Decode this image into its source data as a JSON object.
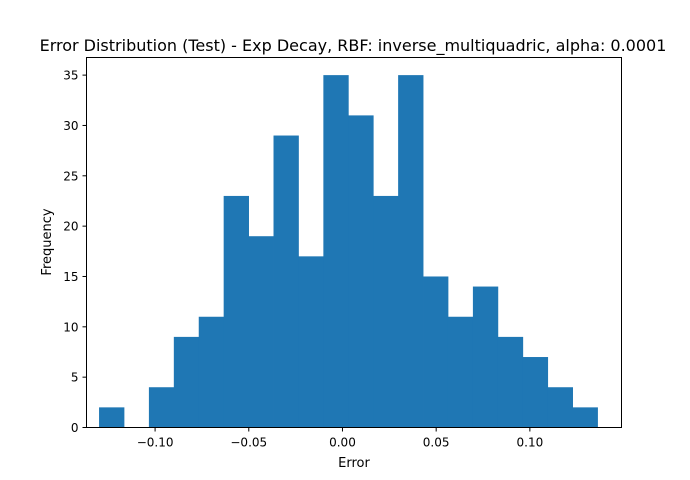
{
  "chart_data": {
    "type": "bar",
    "title": "Error Distribution (Test) - Exp Decay, RBF: inverse_multiquadric, alpha: 0.0001",
    "xlabel": "Error",
    "ylabel": "Frequency",
    "bar_color": "#1f77b4",
    "xlim": [
      -0.1366,
      0.1489
    ],
    "ylim": [
      0,
      36.75
    ],
    "xticks": [
      -0.1,
      -0.05,
      0.0,
      0.05,
      0.1
    ],
    "xtick_labels": [
      "−0.10",
      "−0.05",
      "0.00",
      "0.05",
      "0.10"
    ],
    "yticks": [
      0,
      5,
      10,
      15,
      20,
      25,
      30,
      35
    ],
    "ytick_labels": [
      "0",
      "5",
      "10",
      "15",
      "20",
      "25",
      "30",
      "35"
    ],
    "bin_edges": [
      -0.1299,
      -0.1166,
      -0.1033,
      -0.09,
      -0.0767,
      -0.0634,
      -0.0501,
      -0.0368,
      -0.0235,
      -0.0102,
      0.0031,
      0.0164,
      0.0297,
      0.043,
      0.0563,
      0.0696,
      0.0829,
      0.0962,
      0.1095,
      0.1228,
      0.1361
    ],
    "values": [
      2,
      0,
      4,
      9,
      11,
      23,
      19,
      29,
      17,
      35,
      31,
      23,
      35,
      15,
      11,
      14,
      9,
      7,
      4,
      2
    ],
    "grid": false,
    "legend": "none"
  }
}
